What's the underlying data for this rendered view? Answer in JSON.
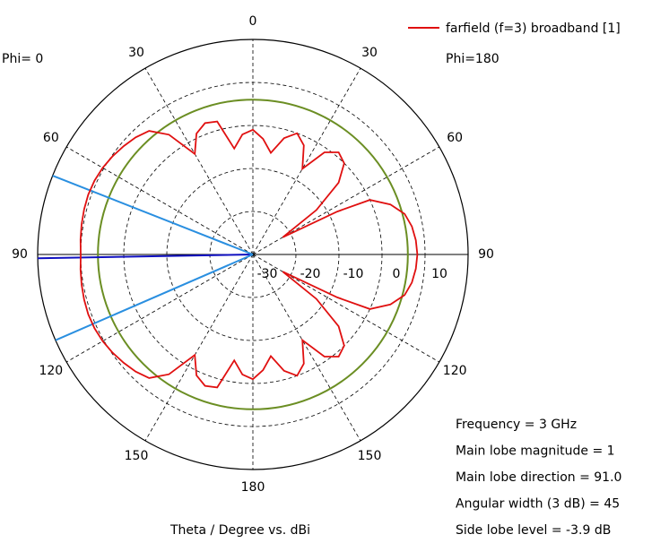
{
  "chart_data": {
    "type": "polar",
    "legend_label": "farfield (f=3) broadband [1]",
    "left_label": "Phi=  0",
    "right_label": "Phi=180",
    "axis_label": "Theta / Degree vs. dBi",
    "info": [
      "Frequency = 3 GHz",
      "Main lobe magnitude =     1",
      "Main lobe direction =  91.0",
      "Angular width (3 dB) =  45",
      "Side lobe level =  -3.9 dB"
    ],
    "angle_ticks": [
      0,
      30,
      60,
      90,
      120,
      150,
      180
    ],
    "rlim": [
      -30,
      20
    ],
    "rticks": [
      -30,
      -20,
      -10,
      0,
      10
    ],
    "grid": true,
    "threshold": {
      "value": 6,
      "color": "#6b8e23"
    },
    "direction_lines": [
      {
        "angle": 269,
        "color": "#1010c0"
      },
      {
        "angle": 246.5,
        "color": "#2a8fe0"
      },
      {
        "angle": 291.5,
        "color": "#2a8fe0"
      }
    ],
    "series": [
      {
        "name": "farfield (f=3) broadband [1]",
        "color": "#e01010",
        "x": [
          0,
          5,
          10,
          15,
          20,
          25,
          30,
          35,
          40,
          45,
          50,
          55,
          60,
          63,
          65,
          70,
          75,
          80,
          85,
          90,
          95,
          100,
          105,
          110,
          115,
          117,
          120,
          125,
          130,
          135,
          140,
          145,
          150,
          155,
          160,
          165,
          170,
          175,
          180,
          185,
          190,
          195,
          200,
          205,
          210,
          215,
          220,
          225,
          230,
          235,
          240,
          245,
          250,
          255,
          260,
          265,
          270,
          275,
          280,
          285,
          290,
          295,
          300,
          305,
          310,
          315,
          320,
          325,
          330,
          335,
          340,
          345,
          350,
          355
        ],
        "values": [
          -1,
          -3,
          -6,
          -2,
          0,
          -2,
          -7,
          -1,
          1,
          0,
          -4,
          -12,
          -22,
          -8,
          0,
          4,
          6.5,
          7.5,
          8,
          8.2,
          8,
          7.5,
          6.5,
          4,
          0,
          -8,
          -22,
          -12,
          -4,
          0,
          1,
          -1,
          -7,
          -2,
          0,
          -2,
          -6,
          -3,
          -1,
          -2,
          -5,
          2,
          2.5,
          1,
          -3,
          4,
          7.5,
          8.5,
          9.2,
          9.8,
          10.3,
          10.6,
          10.7,
          10.6,
          10.4,
          10.2,
          10,
          10.2,
          10.4,
          10.6,
          10.7,
          10.6,
          10.3,
          9.8,
          9.2,
          8.5,
          7.5,
          4,
          -3,
          1,
          2.5,
          2,
          -5,
          -2
        ]
      }
    ]
  }
}
